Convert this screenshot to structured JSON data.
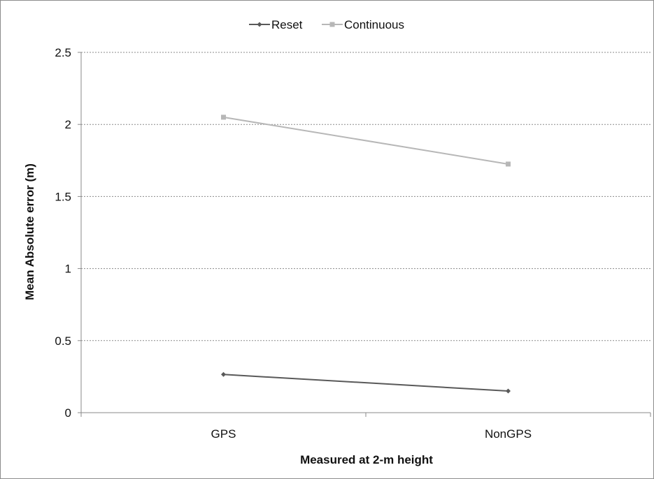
{
  "chart_data": {
    "type": "line",
    "title": "",
    "xlabel": "Measured at 2-m height",
    "ylabel": "Mean Absolute error (m)",
    "categories": [
      "GPS",
      "NonGPS"
    ],
    "ylim": [
      0,
      2.5
    ],
    "yticks": [
      "0",
      "0.5",
      "1",
      "1.5",
      "2",
      "2.5"
    ],
    "grid": "horizontal dashed",
    "legend_position": "top-center",
    "series": [
      {
        "name": "Reset",
        "values": [
          0.265,
          0.15
        ],
        "color": "#595959",
        "marker": "diamond"
      },
      {
        "name": "Continuous",
        "values": [
          2.05,
          1.725
        ],
        "color": "#b7b7b7",
        "marker": "square"
      }
    ]
  }
}
